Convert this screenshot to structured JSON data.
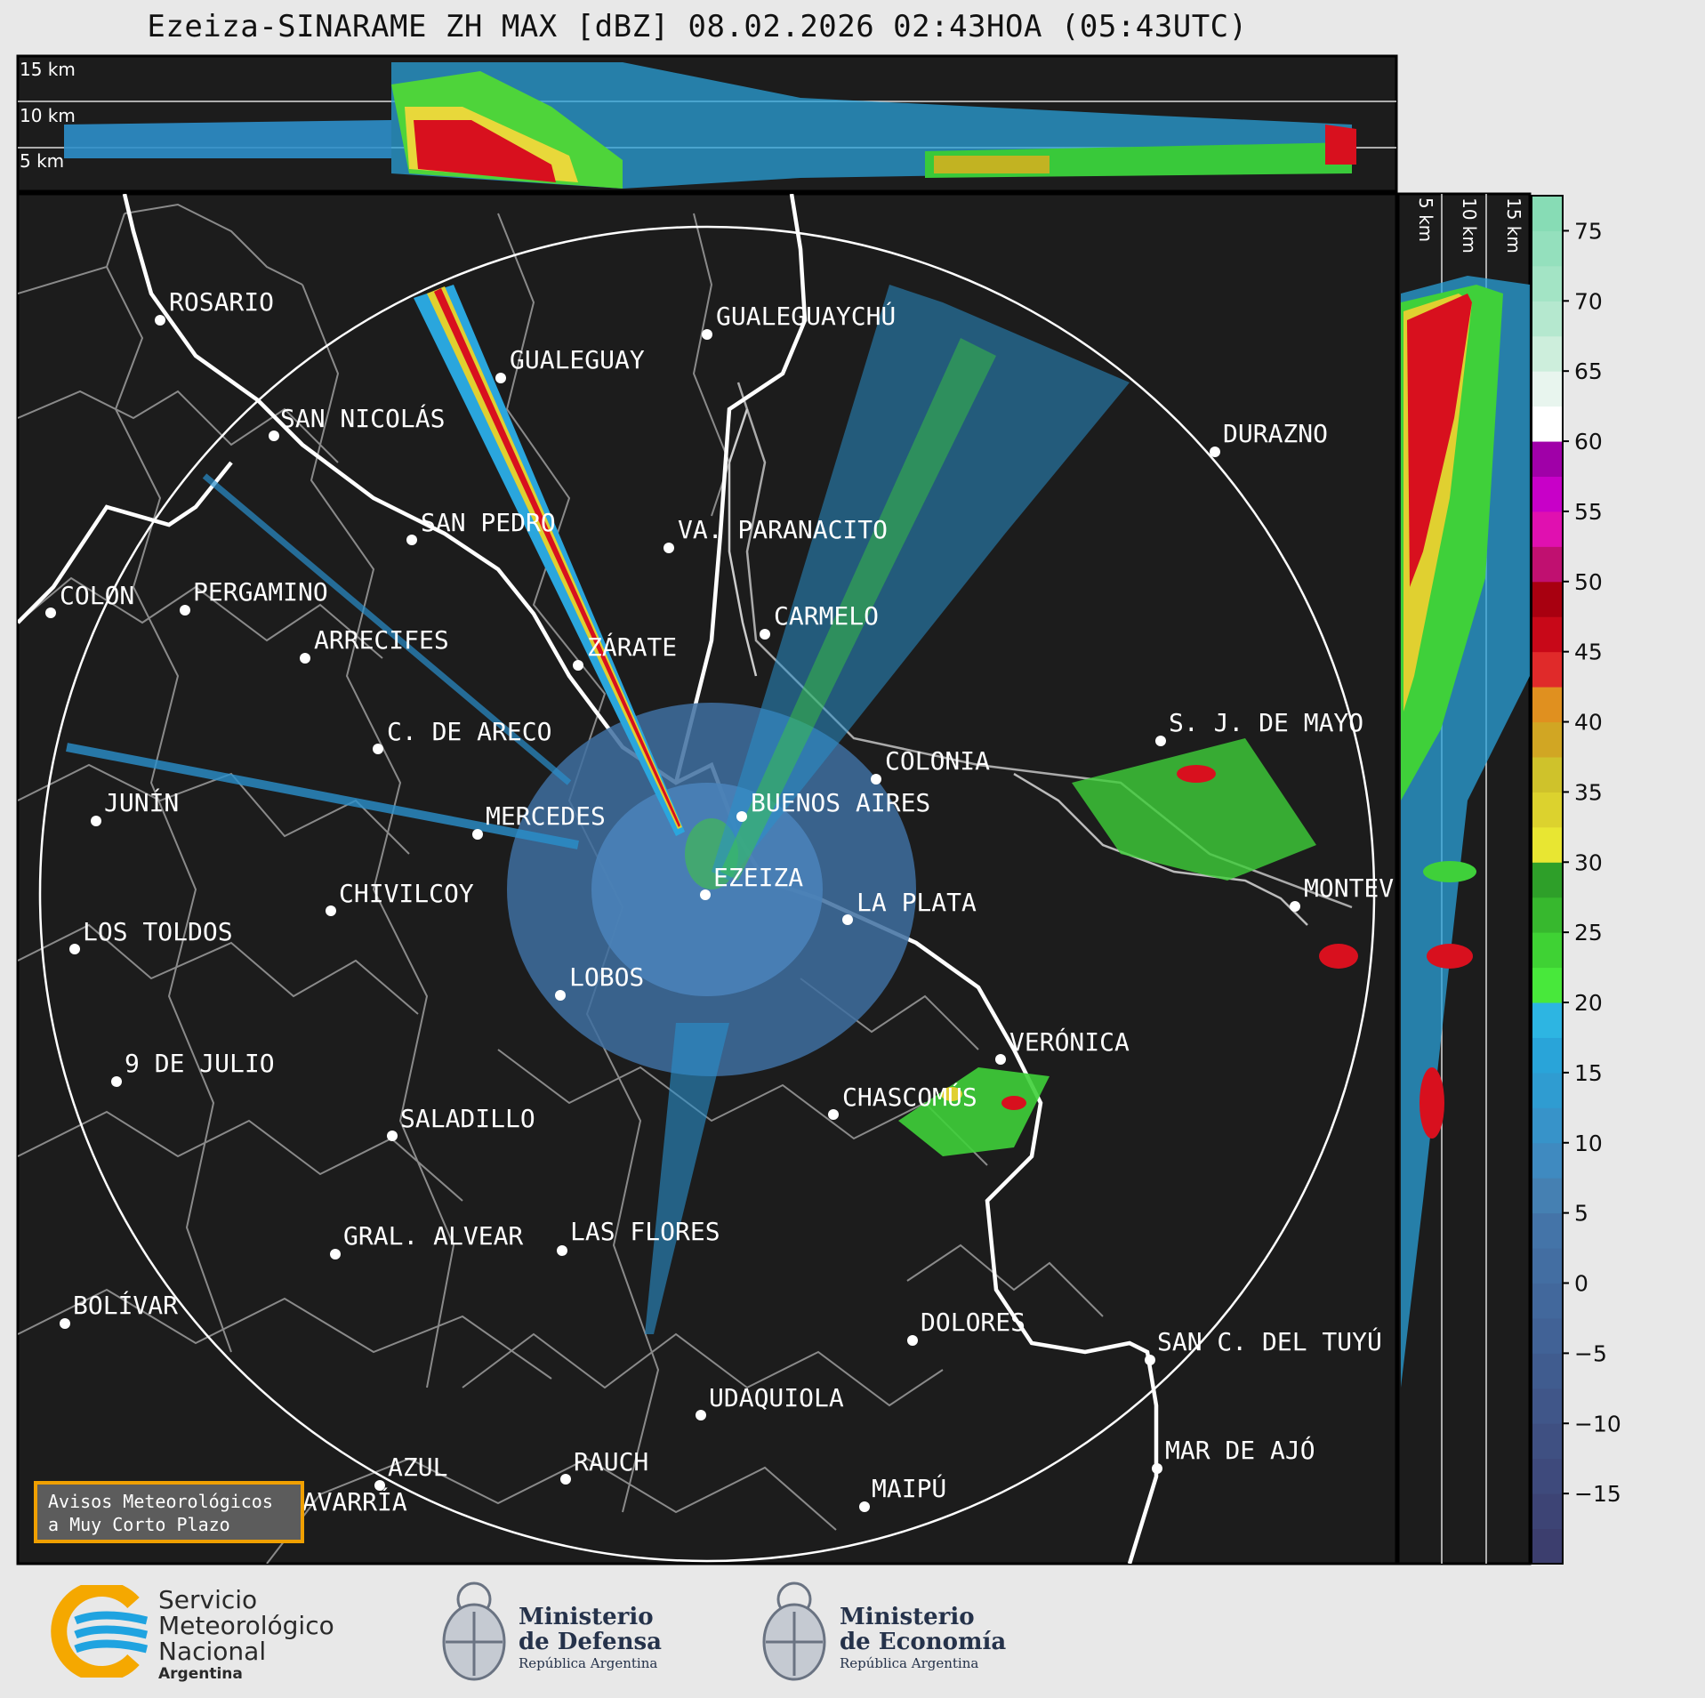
{
  "header": {
    "title": "Ezeiza-SINARAME ZH MAX [dBZ] 08.02.2026 02:43HOA (05:43UTC)"
  },
  "cross_section_top": {
    "height_labels": [
      "15 km",
      "10 km",
      "5 km"
    ]
  },
  "cross_section_right": {
    "height_labels": [
      "5 km",
      "10 km",
      "15 km"
    ]
  },
  "colorbar": {
    "ticks": [
      "75",
      "70",
      "65",
      "60",
      "55",
      "50",
      "45",
      "40",
      "35",
      "30",
      "25",
      "20",
      "15",
      "10",
      "5",
      "0",
      "−5",
      "−10",
      "−15"
    ]
  },
  "cities": [
    {
      "name": "ROSARIO"
    },
    {
      "name": "GUALEGUAYCHÚ"
    },
    {
      "name": "GUALEGUAY"
    },
    {
      "name": "SAN NICOLÁS"
    },
    {
      "name": "DURAZNO"
    },
    {
      "name": "SAN PEDRO"
    },
    {
      "name": "VA. PARANACITO"
    },
    {
      "name": "COLON"
    },
    {
      "name": "PERGAMINO"
    },
    {
      "name": "CARMELO"
    },
    {
      "name": "ARRECIFES"
    },
    {
      "name": "ZÁRATE"
    },
    {
      "name": "S. J. DE MAYO"
    },
    {
      "name": "C. DE ARECO"
    },
    {
      "name": "COLONIA"
    },
    {
      "name": "JUNÍN"
    },
    {
      "name": "BUENOS AIRES"
    },
    {
      "name": "MERCEDES"
    },
    {
      "name": "EZEIZA"
    },
    {
      "name": "MONTEV"
    },
    {
      "name": "CHIVILCOY"
    },
    {
      "name": "LA PLATA"
    },
    {
      "name": "LOS TOLDOS"
    },
    {
      "name": "LOBOS"
    },
    {
      "name": "VERÓNICA"
    },
    {
      "name": "9 DE JULIO"
    },
    {
      "name": "CHASCOMÚS"
    },
    {
      "name": "SALADILLO"
    },
    {
      "name": "GRAL. ALVEAR"
    },
    {
      "name": "LAS FLORES"
    },
    {
      "name": "BOLÍVAR"
    },
    {
      "name": "DOLORES"
    },
    {
      "name": "SAN C. DEL TUYÚ"
    },
    {
      "name": "UDAQUIOLA"
    },
    {
      "name": "MAR DE AJÓ"
    },
    {
      "name": "AZUL"
    },
    {
      "name": "RAUCH"
    },
    {
      "name": "MAIPÚ"
    },
    {
      "name": "OLAVARRÍA"
    }
  ],
  "warning": {
    "line1": "Avisos Meteorológicos",
    "line2": "a Muy Corto Plazo"
  },
  "footer": {
    "smn_line1": "Servicio",
    "smn_line2": "Meteorológico",
    "smn_line3": "Nacional",
    "smn_line4": "Argentina",
    "defensa_line1": "Ministerio",
    "defensa_line2": "de Defensa",
    "defensa_line3": "República Argentina",
    "economia_line1": "Ministerio",
    "economia_line2": "de Economía",
    "economia_line3": "República Argentina"
  },
  "colors": {
    "panel_bg": "#1c1c1c",
    "land_border": "#8a8a8a",
    "coast": "#ffffff",
    "warning_border": "#f0a000",
    "smn_blue": "#1fa3e0",
    "smn_orange": "#f5a800"
  }
}
